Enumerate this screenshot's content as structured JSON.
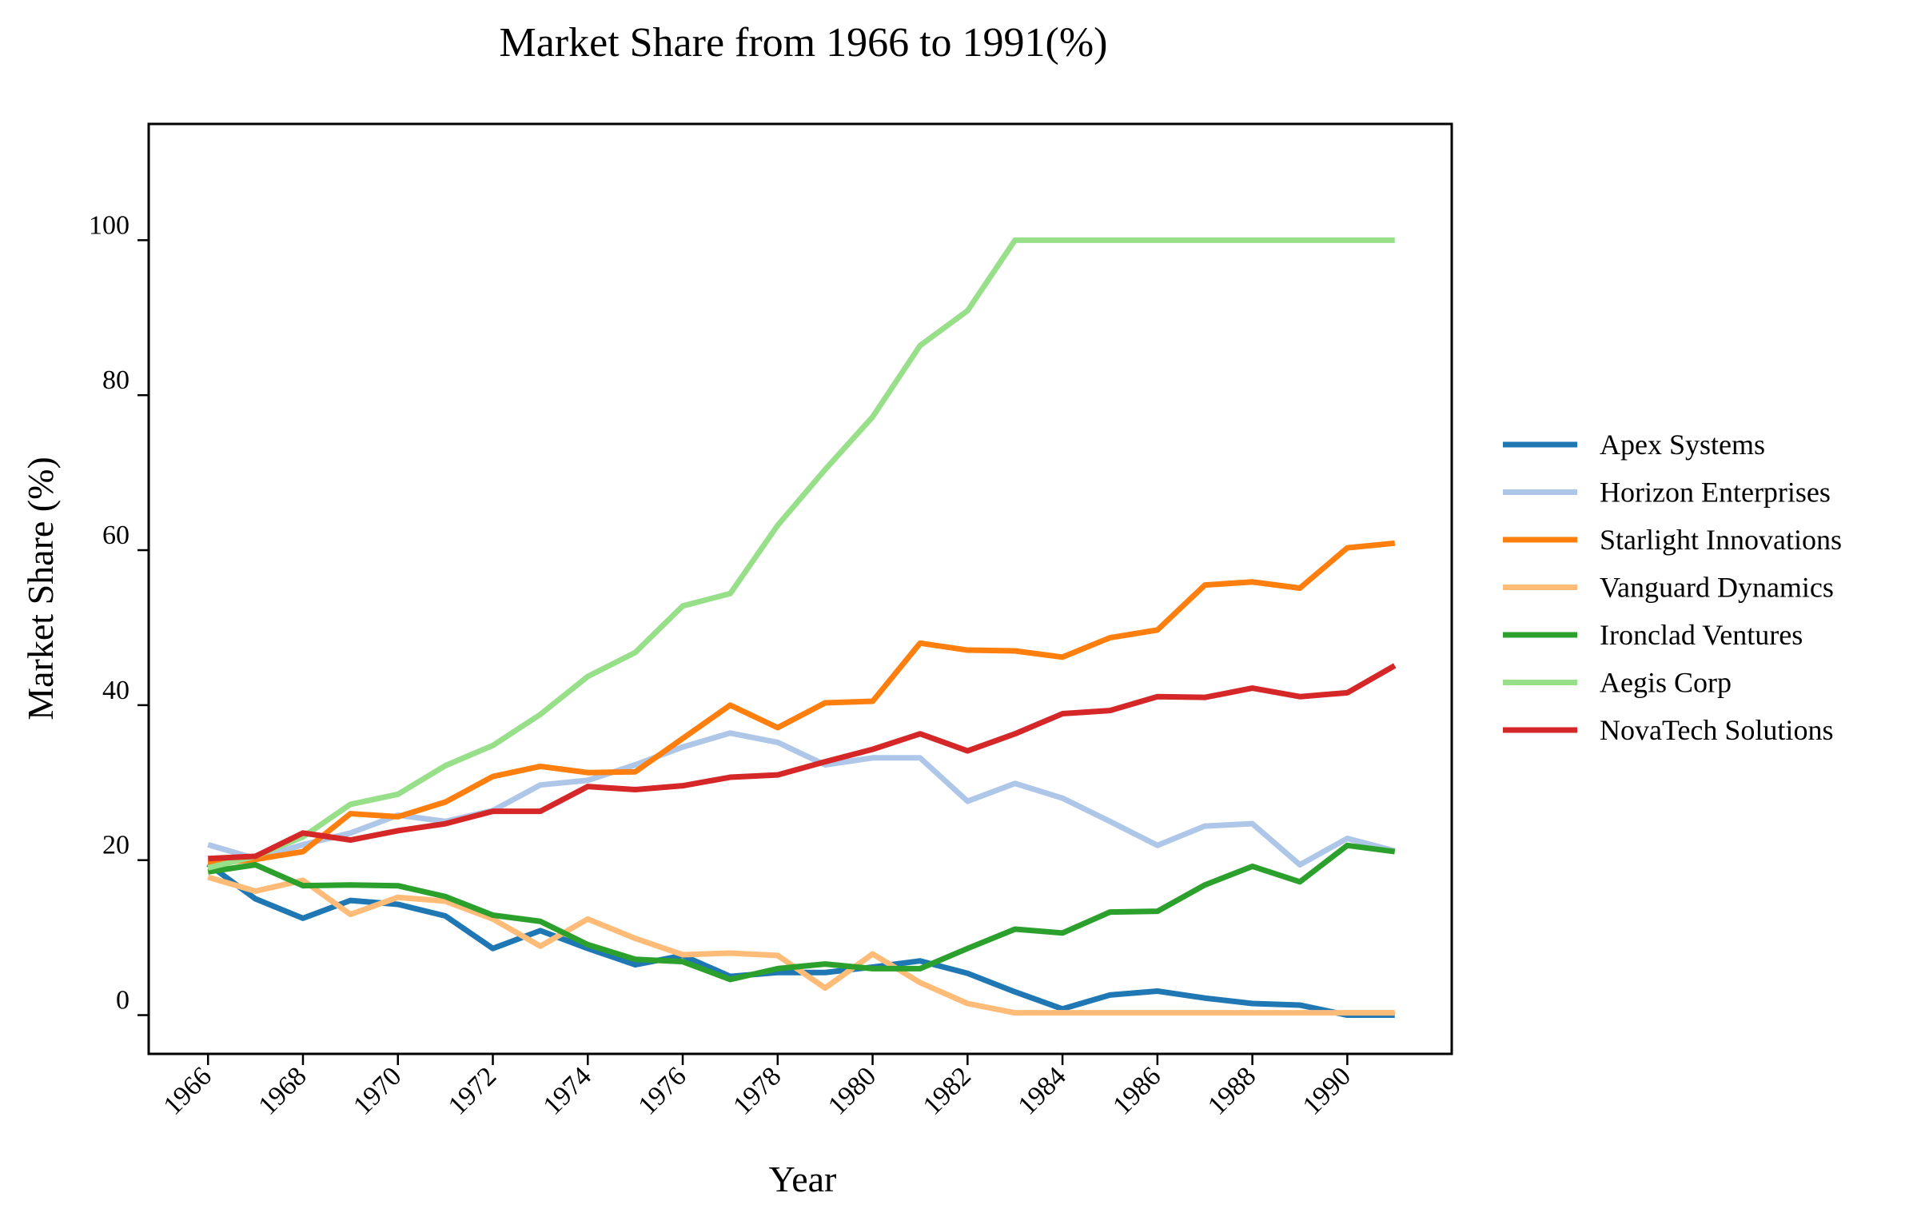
{
  "chart_data": {
    "type": "line",
    "title": "Market Share from 1966 to 1991(%)",
    "xlabel": "Year",
    "ylabel": "Market Share (%)",
    "x": [
      1966,
      1967,
      1968,
      1969,
      1970,
      1971,
      1972,
      1973,
      1974,
      1975,
      1976,
      1977,
      1978,
      1979,
      1980,
      1981,
      1982,
      1983,
      1984,
      1985,
      1986,
      1987,
      1988,
      1989,
      1990,
      1991
    ],
    "xticks": [
      "1966",
      "1968",
      "1970",
      "1972",
      "1974",
      "1976",
      "1978",
      "1980",
      "1982",
      "1984",
      "1986",
      "1988",
      "1990"
    ],
    "yticks": [
      "0",
      "20",
      "40",
      "60",
      "80",
      "100"
    ],
    "xlim": [
      1964.75,
      1992.2
    ],
    "ylim": [
      -5,
      115
    ],
    "legend_position": "right",
    "grid": false,
    "series": [
      {
        "name": "Apex Systems",
        "color": "#1f77b4",
        "values": [
          19.5,
          15.0,
          12.5,
          14.8,
          14.3,
          12.8,
          8.6,
          10.9,
          8.6,
          6.5,
          7.7,
          5.0,
          5.5,
          5.5,
          6.2,
          7.0,
          5.4,
          3.0,
          0.8,
          2.6,
          3.1,
          2.2,
          1.5,
          1.3,
          0.0,
          0.0
        ]
      },
      {
        "name": "Horizon Enterprises",
        "color": "#aec7e8",
        "values": [
          22.0,
          20.2,
          22.0,
          23.5,
          25.8,
          25.0,
          26.4,
          29.7,
          30.3,
          32.3,
          34.6,
          36.4,
          35.2,
          32.3,
          33.2,
          33.2,
          27.6,
          29.9,
          28.0,
          25.0,
          21.9,
          24.4,
          24.7,
          19.4,
          22.8,
          21.2
        ]
      },
      {
        "name": "Starlight Innovations",
        "color": "#ff7f0e",
        "values": [
          19.5,
          20.1,
          21.1,
          26.0,
          25.6,
          27.5,
          30.8,
          32.1,
          31.3,
          31.4,
          35.7,
          40.0,
          37.1,
          40.3,
          40.5,
          48.0,
          47.1,
          47.0,
          46.2,
          48.7,
          49.7,
          55.5,
          55.9,
          55.1,
          60.3,
          60.9
        ]
      },
      {
        "name": "Vanguard Dynamics",
        "color": "#ffbb78",
        "values": [
          17.8,
          16.0,
          17.4,
          13.0,
          15.2,
          14.7,
          12.4,
          8.9,
          12.4,
          9.9,
          7.8,
          8.0,
          7.7,
          3.5,
          7.9,
          4.2,
          1.5,
          0.3,
          0.3,
          0.3,
          0.3,
          0.3,
          0.3,
          0.3,
          0.3,
          0.3
        ]
      },
      {
        "name": "Ironclad Ventures",
        "color": "#2ca02c",
        "values": [
          18.5,
          19.4,
          16.7,
          16.8,
          16.7,
          15.3,
          12.9,
          12.1,
          9.1,
          7.2,
          6.9,
          4.6,
          6.0,
          6.6,
          6.0,
          6.0,
          8.6,
          11.1,
          10.6,
          13.3,
          13.4,
          16.8,
          19.2,
          17.2,
          21.9,
          21.1
        ]
      },
      {
        "name": "Aegis Corp",
        "color": "#98df8a",
        "values": [
          19.0,
          20.5,
          23.0,
          27.2,
          28.5,
          32.2,
          34.8,
          38.8,
          43.7,
          46.8,
          52.8,
          54.4,
          63.2,
          70.4,
          77.2,
          86.4,
          90.9,
          100.0,
          100.0,
          100.0,
          100.0,
          100.0,
          100.0,
          100.0,
          100.0,
          100.0
        ]
      },
      {
        "name": "NovaTech Solutions",
        "color": "#d62728",
        "values": [
          20.2,
          20.5,
          23.5,
          22.6,
          23.8,
          24.7,
          26.3,
          26.3,
          29.5,
          29.1,
          29.6,
          30.7,
          31.0,
          32.7,
          34.3,
          36.3,
          34.1,
          36.3,
          38.9,
          39.3,
          41.1,
          41.0,
          42.2,
          41.1,
          41.6,
          45.1
        ]
      }
    ]
  }
}
